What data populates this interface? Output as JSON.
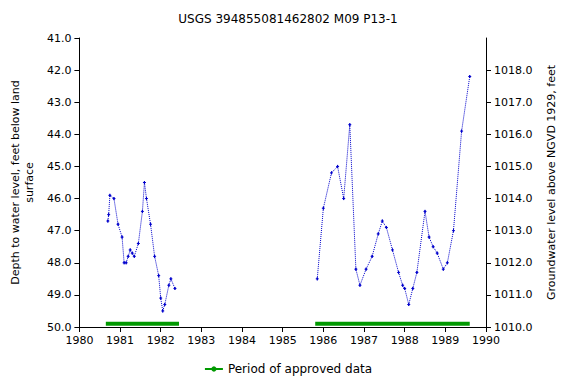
{
  "chart_data": {
    "type": "line",
    "title": "USGS 394855081462802 M09 P13-1",
    "y_label": "Depth to water level, feet below land\nsurface",
    "y2_label": "Groundwater level above NGVD 1929, feet",
    "xlim": [
      1980,
      1990
    ],
    "xticks": [
      1980,
      1981,
      1982,
      1983,
      1984,
      1985,
      1986,
      1987,
      1988,
      1989,
      1990
    ],
    "ylim": [
      50,
      41
    ],
    "yticks": [
      {
        "value": 41,
        "label": "41.0"
      },
      {
        "value": 42,
        "label": "42.0"
      },
      {
        "value": 43,
        "label": "43.0"
      },
      {
        "value": 44,
        "label": "44.0"
      },
      {
        "value": 45,
        "label": "45.0"
      },
      {
        "value": 46,
        "label": "46.0"
      },
      {
        "value": 47,
        "label": "47.0"
      },
      {
        "value": 48,
        "label": "48.0"
      },
      {
        "value": 49,
        "label": "49.0"
      },
      {
        "value": 50,
        "label": "50.0"
      }
    ],
    "y2lim": [
      1010,
      1019
    ],
    "y2ticks": [
      {
        "value": 1010,
        "label": "1010.0"
      },
      {
        "value": 1011,
        "label": "1011.0"
      },
      {
        "value": 1012,
        "label": "1012.0"
      },
      {
        "value": 1013,
        "label": "1013.0"
      },
      {
        "value": 1014,
        "label": "1014.0"
      },
      {
        "value": 1015,
        "label": "1015.0"
      },
      {
        "value": 1016,
        "label": "1016.0"
      },
      {
        "value": 1017,
        "label": "1017.0"
      },
      {
        "value": 1018,
        "label": "1018.0"
      }
    ],
    "grid": false,
    "legend": "bottom",
    "series": [
      {
        "color": "#0000cc",
        "type": "line",
        "marker": "plus",
        "line_style": "dotted",
        "x": [
          1980.7,
          1980.72,
          1980.75,
          1980.85,
          1980.95,
          1981.05,
          1981.1,
          1981.15,
          1981.2,
          1981.25,
          1981.3,
          1981.35,
          1981.45,
          1981.55,
          1981.6,
          1981.65,
          1981.75,
          1981.85,
          1981.95,
          1982.0,
          1982.05,
          1982.1,
          1982.2,
          1982.25,
          1982.35,
          1984.0,
          1985.85,
          1986.0,
          1986.2,
          1986.35,
          1986.5,
          1986.65,
          1986.8,
          1986.9,
          1987.05,
          1987.2,
          1987.35,
          1987.45,
          1987.55,
          1987.7,
          1987.85,
          1987.95,
          1988.0,
          1988.1,
          1988.2,
          1988.3,
          1988.5,
          1988.6,
          1988.7,
          1988.8,
          1988.95,
          1989.05,
          1989.2,
          1989.4,
          1989.6
        ],
        "values": [
          46.7,
          46.5,
          45.9,
          46.0,
          46.8,
          47.2,
          48.0,
          48.0,
          47.8,
          47.6,
          47.7,
          47.8,
          47.4,
          46.4,
          45.5,
          46.0,
          46.8,
          47.8,
          48.4,
          49.1,
          49.5,
          49.3,
          48.7,
          48.5,
          48.8,
          null,
          48.5,
          46.3,
          45.2,
          45.0,
          46.0,
          43.7,
          48.2,
          48.7,
          48.2,
          47.8,
          47.1,
          46.7,
          46.9,
          47.6,
          48.3,
          48.7,
          48.8,
          49.3,
          48.8,
          48.3,
          46.4,
          47.2,
          47.5,
          47.7,
          48.2,
          48.0,
          47.0,
          43.9,
          42.2
        ]
      },
      {
        "name": "Period of approved data",
        "color": "#009900",
        "type": "line",
        "marker": "none",
        "line_style": "solid",
        "x": [
          1980.65,
          1982.45,
          1982.45,
          1985.8,
          1989.6
        ],
        "values": [
          49.9,
          49.9,
          null,
          49.9,
          49.9
        ]
      }
    ]
  }
}
